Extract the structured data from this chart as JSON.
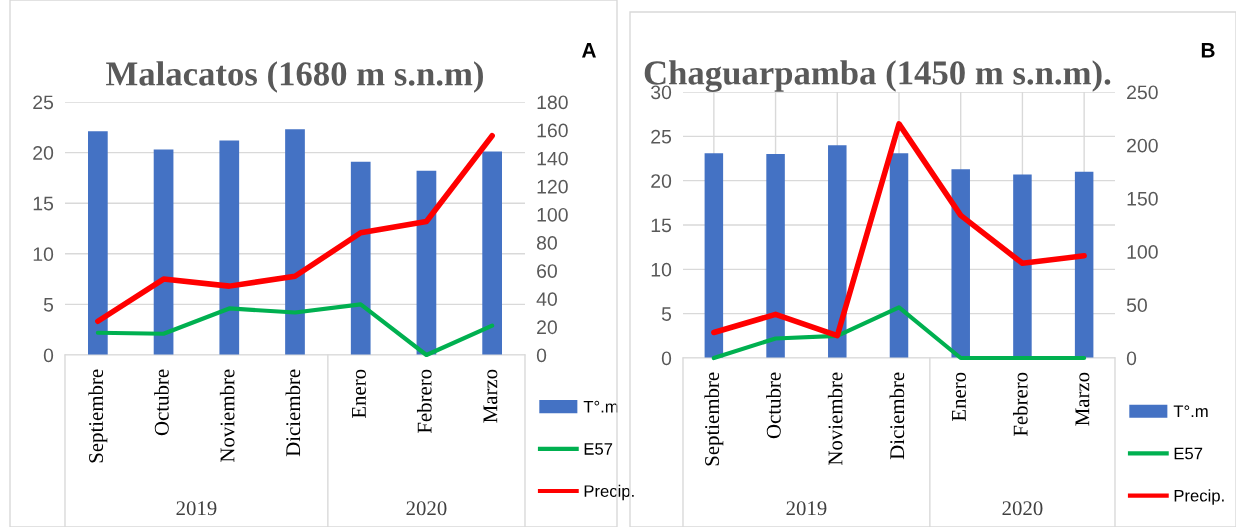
{
  "chart_data": [
    {
      "type": "bar",
      "title": "Malacatos (1680 m s.n.m)",
      "categories": [
        "Septiembre",
        "Octubre",
        "Noviembre",
        "Diciembre",
        "Enero",
        "Febrero",
        "Marzo"
      ],
      "series": [
        {
          "name": "T°.m",
          "color": "#4472c4",
          "values": [
            22.1,
            20.3,
            21.2,
            22.3,
            19.1,
            18.2,
            20.1
          ]
        },
        {
          "name": "E57",
          "type": "line",
          "color": "#00b050",
          "values": [
            2.2,
            2.1,
            4.6,
            4.2,
            5.0,
            0,
            2.9
          ]
        },
        {
          "name": "Precip.",
          "type": "line",
          "color": "#ff0000",
          "axis": "y2",
          "values": [
            24,
            54,
            49,
            56,
            87,
            95,
            156
          ]
        }
      ],
      "ylim": [
        0,
        25
      ],
      "yticks": [
        0,
        5,
        10,
        15,
        20,
        25
      ],
      "y2lim": [
        0,
        180
      ],
      "y2ticks": [
        0,
        20,
        40,
        60,
        80,
        100,
        120,
        140,
        160,
        180
      ],
      "grid": "y",
      "legend": "right",
      "annotations": [
        "A",
        "2019",
        "2020"
      ]
    },
    {
      "type": "bar",
      "title": "Chaguarpamba (1450 m s.n.m).",
      "categories": [
        "Septiembre",
        "Octubre",
        "Noviembre",
        "Diciembre",
        "Enero",
        "Febrero",
        "Marzo"
      ],
      "series": [
        {
          "name": "T°.m",
          "color": "#4472c4",
          "values": [
            23.1,
            23.0,
            24.0,
            23.1,
            21.3,
            20.7,
            21.0
          ]
        },
        {
          "name": "E57",
          "type": "line",
          "color": "#00b050",
          "values": [
            0,
            2.2,
            2.5,
            5.7,
            0,
            0,
            0
          ]
        },
        {
          "name": "Precip.",
          "type": "line",
          "color": "#ff0000",
          "axis": "y2",
          "values": [
            24,
            41,
            21,
            220,
            134,
            89,
            96
          ]
        }
      ],
      "ylim": [
        0,
        30
      ],
      "yticks": [
        0,
        5,
        10,
        15,
        20,
        25,
        30
      ],
      "y2lim": [
        0,
        250
      ],
      "y2ticks": [
        0,
        50,
        100,
        150,
        200,
        250
      ],
      "grid": true,
      "legend": "right",
      "annotations": [
        "B",
        "2019",
        "2020"
      ]
    }
  ]
}
